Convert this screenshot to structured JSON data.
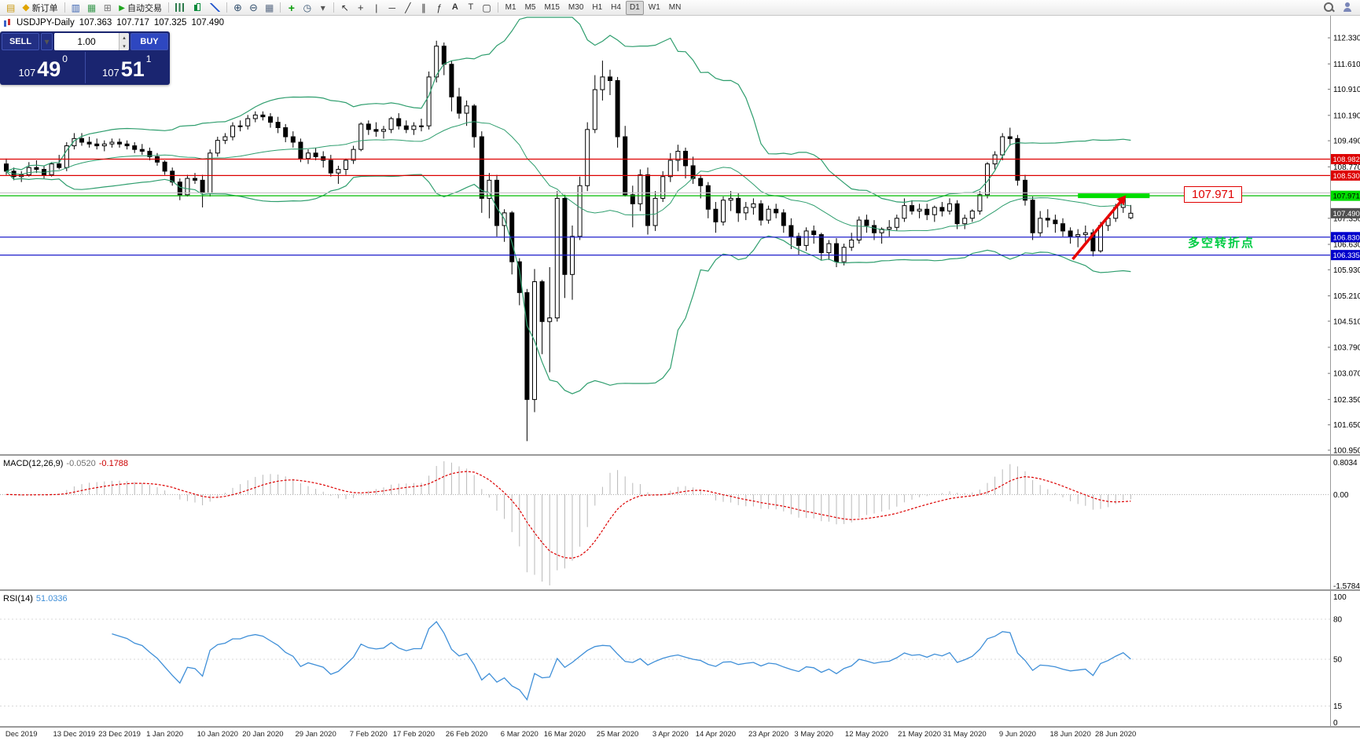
{
  "toolbar": {
    "new_order_label": "新订单",
    "autotrade_label": "自动交易",
    "timeframes": [
      "M1",
      "M5",
      "M15",
      "M30",
      "H1",
      "H4",
      "D1",
      "W1",
      "MN"
    ],
    "active_timeframe": "D1"
  },
  "chart_header": {
    "symbol_label": "USDJPY-Daily",
    "open": "107.363",
    "high": "107.717",
    "low": "107.325",
    "close": "107.490"
  },
  "trade_panel": {
    "sell_label": "SELL",
    "buy_label": "BUY",
    "lot_value": "1.00",
    "sell_price_main": "107",
    "sell_price_big": "49",
    "sell_price_sup": "0",
    "buy_price_main": "107",
    "buy_price_big": "51",
    "buy_price_sup": "1"
  },
  "annotations": {
    "price_box": "107.971",
    "turning_point": "多空转折点"
  },
  "colors": {
    "bollinger": "#2f9e6e",
    "resistance": "#dd0000",
    "support": "#2020cc",
    "pivot": "#00dd00",
    "macd_hist": "#b8b8b8",
    "macd_signal": "#dd0000",
    "rsi_line": "#3f8fd8"
  },
  "chart_data": [
    {
      "type": "candlestick",
      "symbol": "USDJPY",
      "period": "Daily",
      "ylim": [
        100.84,
        112.94
      ],
      "y_axis_labels": [
        "112.330",
        "111.610",
        "110.910",
        "110.190",
        "109.490",
        "108.770",
        "107.350",
        "106.630",
        "105.930",
        "105.210",
        "104.510",
        "103.790",
        "103.070",
        "102.350",
        "101.650",
        "100.950"
      ],
      "x_ticks": [
        {
          "i": 2,
          "label": "Dec 2019"
        },
        {
          "i": 9,
          "label": "13 Dec 2019"
        },
        {
          "i": 15,
          "label": "23 Dec 2019"
        },
        {
          "i": 21,
          "label": "1 Jan 2020"
        },
        {
          "i": 28,
          "label": "10 Jan 2020"
        },
        {
          "i": 34,
          "label": "20 Jan 2020"
        },
        {
          "i": 41,
          "label": "29 Jan 2020"
        },
        {
          "i": 48,
          "label": "7 Feb 2020"
        },
        {
          "i": 54,
          "label": "17 Feb 2020"
        },
        {
          "i": 61,
          "label": "26 Feb 2020"
        },
        {
          "i": 68,
          "label": "6 Mar 2020"
        },
        {
          "i": 74,
          "label": "16 Mar 2020"
        },
        {
          "i": 81,
          "label": "25 Mar 2020"
        },
        {
          "i": 88,
          "label": "3 Apr 2020"
        },
        {
          "i": 94,
          "label": "14 Apr 2020"
        },
        {
          "i": 101,
          "label": "23 Apr 2020"
        },
        {
          "i": 107,
          "label": "3 May 2020"
        },
        {
          "i": 114,
          "label": "12 May 2020"
        },
        {
          "i": 121,
          "label": "21 May 2020"
        },
        {
          "i": 127,
          "label": "31 May 2020"
        },
        {
          "i": 134,
          "label": "9 Jun 2020"
        },
        {
          "i": 141,
          "label": "18 Jun 2020"
        },
        {
          "i": 147,
          "label": "28 Jun 2020"
        }
      ],
      "overlays": {
        "bollinger_period": 20,
        "bollinger_dev": 2
      },
      "hlines": [
        {
          "price": 108.982,
          "color": "#dd0000"
        },
        {
          "price": 108.53,
          "color": "#dd0000"
        },
        {
          "price": 108.05,
          "color": "#c8c8c8"
        },
        {
          "price": 107.971,
          "color": "#00bb00"
        },
        {
          "price": 106.83,
          "color": "#2020cc"
        },
        {
          "price": 106.335,
          "color": "#2020cc"
        }
      ],
      "badges": [
        {
          "price": 108.982,
          "text": "108.982",
          "bg": "#dd0000",
          "fg": "#ffffff"
        },
        {
          "price": 108.53,
          "text": "108.530",
          "bg": "#dd0000",
          "fg": "#ffffff"
        },
        {
          "price": 107.971,
          "text": "107.971",
          "bg": "#00dd00",
          "fg": "#000000"
        },
        {
          "price": 107.49,
          "text": "107.490",
          "bg": "#4f4f4f",
          "fg": "#ffffff"
        },
        {
          "price": 106.83,
          "text": "106.830",
          "bg": "#0000cc",
          "fg": "#ffffff"
        },
        {
          "price": 106.335,
          "text": "106.335",
          "bg": "#0000cc",
          "fg": "#ffffff"
        }
      ],
      "pivot_segment": {
        "from_i": 142,
        "to_i": 151.5,
        "price": 107.971,
        "color": "#00dd00",
        "width": 6
      },
      "trend_arrow": {
        "points": [
          [
            141.3,
            106.22
          ],
          [
            144.2,
            106.95
          ],
          [
            147.7,
            107.82
          ]
        ],
        "color": "#e80000"
      },
      "candles": [
        [
          108.85,
          109.0,
          108.55,
          108.65
        ],
        [
          108.65,
          108.75,
          108.4,
          108.5
        ],
        [
          108.5,
          108.65,
          108.35,
          108.55
        ],
        [
          108.55,
          108.9,
          108.5,
          108.75
        ],
        [
          108.75,
          108.95,
          108.6,
          108.7
        ],
        [
          108.7,
          108.8,
          108.45,
          108.55
        ],
        [
          108.55,
          108.9,
          108.5,
          108.85
        ],
        [
          108.85,
          109.1,
          108.7,
          108.75
        ],
        [
          108.75,
          109.45,
          108.65,
          109.35
        ],
        [
          109.35,
          109.7,
          109.25,
          109.55
        ],
        [
          109.55,
          109.7,
          109.35,
          109.45
        ],
        [
          109.45,
          109.6,
          109.3,
          109.4
        ],
        [
          109.4,
          109.55,
          109.25,
          109.35
        ],
        [
          109.35,
          109.5,
          109.2,
          109.4
        ],
        [
          109.4,
          109.55,
          109.3,
          109.45
        ],
        [
          109.45,
          109.55,
          109.3,
          109.4
        ],
        [
          109.4,
          109.5,
          109.25,
          109.35
        ],
        [
          109.35,
          109.45,
          109.15,
          109.25
        ],
        [
          109.25,
          109.4,
          109.1,
          109.2
        ],
        [
          109.2,
          109.3,
          108.95,
          109.05
        ],
        [
          109.05,
          109.15,
          108.8,
          108.9
        ],
        [
          108.9,
          108.95,
          108.55,
          108.65
        ],
        [
          108.65,
          108.75,
          108.25,
          108.35
        ],
        [
          108.35,
          108.45,
          107.85,
          108.0
        ],
        [
          108.0,
          108.55,
          107.95,
          108.45
        ],
        [
          108.45,
          108.6,
          108.3,
          108.4
        ],
        [
          108.4,
          108.55,
          107.65,
          108.05
        ],
        [
          108.05,
          109.25,
          107.95,
          109.15
        ],
        [
          109.15,
          109.6,
          109.05,
          109.5
        ],
        [
          109.5,
          109.7,
          109.4,
          109.6
        ],
        [
          109.6,
          110.0,
          109.5,
          109.9
        ],
        [
          109.9,
          110.05,
          109.75,
          109.9
        ],
        [
          109.9,
          110.2,
          109.8,
          110.1
        ],
        [
          110.1,
          110.3,
          110.0,
          110.2
        ],
        [
          110.2,
          110.3,
          110.05,
          110.15
        ],
        [
          110.15,
          110.25,
          109.85,
          110.0
        ],
        [
          110.0,
          110.15,
          109.7,
          109.85
        ],
        [
          109.85,
          109.95,
          109.45,
          109.6
        ],
        [
          109.6,
          109.75,
          109.3,
          109.45
        ],
        [
          109.45,
          109.55,
          108.9,
          109.0
        ],
        [
          109.0,
          109.25,
          108.85,
          109.15
        ],
        [
          109.15,
          109.3,
          108.95,
          109.05
        ],
        [
          109.05,
          109.2,
          108.75,
          108.95
        ],
        [
          108.95,
          109.1,
          108.5,
          108.6
        ],
        [
          108.6,
          108.8,
          108.3,
          108.7
        ],
        [
          108.7,
          109.0,
          108.55,
          108.95
        ],
        [
          108.95,
          109.35,
          108.85,
          109.25
        ],
        [
          109.25,
          110.0,
          109.2,
          109.95
        ],
        [
          109.95,
          110.05,
          109.65,
          109.8
        ],
        [
          109.8,
          110.0,
          109.6,
          109.75
        ],
        [
          109.75,
          109.9,
          109.55,
          109.8
        ],
        [
          109.8,
          110.15,
          109.7,
          110.1
        ],
        [
          110.1,
          110.25,
          109.8,
          109.9
        ],
        [
          109.9,
          110.05,
          109.7,
          109.8
        ],
        [
          109.8,
          110.0,
          109.65,
          109.9
        ],
        [
          109.9,
          110.1,
          109.75,
          109.9
        ],
        [
          109.9,
          111.4,
          109.8,
          111.25
        ],
        [
          111.25,
          112.25,
          111.1,
          112.1
        ],
        [
          112.1,
          112.2,
          111.3,
          111.6
        ],
        [
          111.6,
          111.7,
          110.3,
          110.7
        ],
        [
          110.7,
          110.95,
          110.1,
          110.25
        ],
        [
          110.25,
          110.6,
          109.9,
          110.45
        ],
        [
          110.45,
          110.5,
          109.3,
          109.6
        ],
        [
          109.6,
          109.75,
          107.5,
          107.9
        ],
        [
          107.9,
          108.6,
          107.35,
          108.4
        ],
        [
          108.4,
          108.55,
          106.85,
          107.15
        ],
        [
          107.15,
          107.6,
          106.7,
          107.5
        ],
        [
          107.5,
          107.55,
          105.8,
          106.15
        ],
        [
          106.15,
          106.25,
          104.95,
          105.3
        ],
        [
          105.3,
          105.4,
          101.2,
          102.35
        ],
        [
          102.35,
          105.95,
          102.0,
          105.6
        ],
        [
          105.6,
          105.65,
          103.6,
          104.5
        ],
        [
          104.5,
          106.0,
          103.1,
          104.6
        ],
        [
          104.6,
          108.1,
          104.5,
          107.9
        ],
        [
          107.9,
          108.0,
          105.15,
          105.8
        ],
        [
          105.8,
          107.15,
          105.1,
          106.85
        ],
        [
          106.85,
          108.5,
          106.75,
          108.25
        ],
        [
          108.25,
          110.0,
          108.1,
          109.8
        ],
        [
          109.8,
          111.3,
          109.7,
          110.9
        ],
        [
          110.9,
          111.7,
          110.6,
          111.25
        ],
        [
          111.25,
          111.45,
          110.75,
          111.15
        ],
        [
          111.15,
          111.25,
          109.3,
          109.6
        ],
        [
          109.6,
          109.9,
          107.95,
          108.0
        ],
        [
          108.0,
          108.25,
          107.1,
          107.75
        ],
        [
          107.75,
          108.7,
          107.55,
          108.55
        ],
        [
          108.55,
          108.75,
          106.9,
          107.15
        ],
        [
          107.15,
          108.1,
          107.0,
          107.9
        ],
        [
          107.9,
          108.65,
          107.8,
          108.5
        ],
        [
          108.5,
          109.15,
          108.35,
          108.95
        ],
        [
          108.95,
          109.38,
          108.65,
          109.2
        ],
        [
          109.2,
          109.3,
          108.45,
          108.8
        ],
        [
          108.8,
          109.05,
          108.3,
          108.45
        ],
        [
          108.45,
          108.55,
          107.9,
          108.25
        ],
        [
          108.25,
          108.35,
          107.35,
          107.6
        ],
        [
          107.6,
          107.8,
          106.95,
          107.25
        ],
        [
          107.25,
          107.95,
          107.15,
          107.85
        ],
        [
          107.85,
          108.1,
          107.55,
          107.9
        ],
        [
          107.9,
          108.05,
          107.25,
          107.5
        ],
        [
          107.5,
          107.8,
          107.3,
          107.65
        ],
        [
          107.65,
          107.9,
          107.45,
          107.75
        ],
        [
          107.75,
          107.85,
          107.15,
          107.3
        ],
        [
          107.3,
          107.7,
          107.2,
          107.6
        ],
        [
          107.6,
          107.75,
          107.35,
          107.5
        ],
        [
          107.5,
          107.6,
          106.95,
          107.15
        ],
        [
          107.15,
          107.35,
          106.5,
          106.85
        ],
        [
          106.85,
          106.95,
          106.35,
          106.6
        ],
        [
          106.6,
          107.1,
          106.45,
          107.0
        ],
        [
          107.0,
          107.15,
          106.65,
          106.9
        ],
        [
          106.9,
          106.95,
          106.2,
          106.4
        ],
        [
          106.4,
          106.75,
          106.2,
          106.65
        ],
        [
          106.65,
          106.8,
          106.0,
          106.15
        ],
        [
          106.15,
          106.65,
          106.05,
          106.55
        ],
        [
          106.55,
          106.95,
          106.45,
          106.75
        ],
        [
          106.75,
          107.4,
          106.65,
          107.3
        ],
        [
          107.3,
          107.45,
          106.95,
          107.15
        ],
        [
          107.15,
          107.3,
          106.75,
          106.95
        ],
        [
          106.95,
          107.1,
          106.65,
          107.05
        ],
        [
          107.05,
          107.3,
          106.85,
          107.1
        ],
        [
          107.1,
          107.45,
          107.0,
          107.35
        ],
        [
          107.35,
          107.9,
          107.25,
          107.7
        ],
        [
          107.7,
          107.85,
          107.45,
          107.55
        ],
        [
          107.55,
          107.75,
          107.35,
          107.6
        ],
        [
          107.6,
          107.75,
          107.3,
          107.45
        ],
        [
          107.45,
          107.7,
          107.25,
          107.65
        ],
        [
          107.65,
          107.8,
          107.4,
          107.55
        ],
        [
          107.55,
          107.9,
          107.45,
          107.75
        ],
        [
          107.75,
          107.85,
          107.05,
          107.2
        ],
        [
          107.2,
          107.45,
          107.05,
          107.35
        ],
        [
          107.35,
          107.6,
          107.25,
          107.55
        ],
        [
          107.55,
          108.1,
          107.45,
          108.0
        ],
        [
          108.0,
          108.9,
          107.9,
          108.85
        ],
        [
          108.85,
          109.2,
          108.7,
          109.1
        ],
        [
          109.1,
          109.7,
          108.95,
          109.6
        ],
        [
          109.6,
          109.85,
          109.35,
          109.55
        ],
        [
          109.55,
          109.65,
          108.25,
          108.4
        ],
        [
          108.4,
          108.55,
          107.7,
          107.85
        ],
        [
          107.85,
          107.95,
          106.75,
          106.95
        ],
        [
          106.95,
          107.55,
          106.85,
          107.35
        ],
        [
          107.35,
          107.6,
          107.1,
          107.3
        ],
        [
          107.3,
          107.45,
          106.95,
          107.2
        ],
        [
          107.2,
          107.35,
          106.85,
          107.0
        ],
        [
          107.0,
          107.1,
          106.65,
          106.85
        ],
        [
          106.85,
          107.05,
          106.55,
          106.9
        ],
        [
          106.9,
          107.15,
          106.7,
          106.95
        ],
        [
          106.95,
          107.05,
          106.3,
          106.45
        ],
        [
          106.45,
          107.25,
          106.4,
          107.15
        ],
        [
          107.15,
          107.45,
          107.0,
          107.35
        ],
        [
          107.35,
          107.75,
          107.25,
          107.65
        ],
        [
          107.65,
          108.0,
          107.5,
          107.9
        ],
        [
          107.363,
          107.717,
          107.325,
          107.49
        ]
      ]
    },
    {
      "type": "macd",
      "name": "MACD(12,26,9)",
      "fast": 12,
      "slow": 26,
      "signal": 9,
      "macd_value": "-0.0520",
      "signal_value": "-0.1788",
      "axis_labels": {
        "top": "0.8034",
        "zero": "0.00",
        "bottom": "-1.5784"
      },
      "derived_from": "candles"
    },
    {
      "type": "rsi",
      "name": "RSI(14)",
      "period": 14,
      "value": "51.0336",
      "axis_labels": [
        "100",
        "80",
        "50",
        "15",
        "0"
      ],
      "levels": [
        80,
        50,
        15
      ],
      "derived_from": "candles"
    }
  ]
}
